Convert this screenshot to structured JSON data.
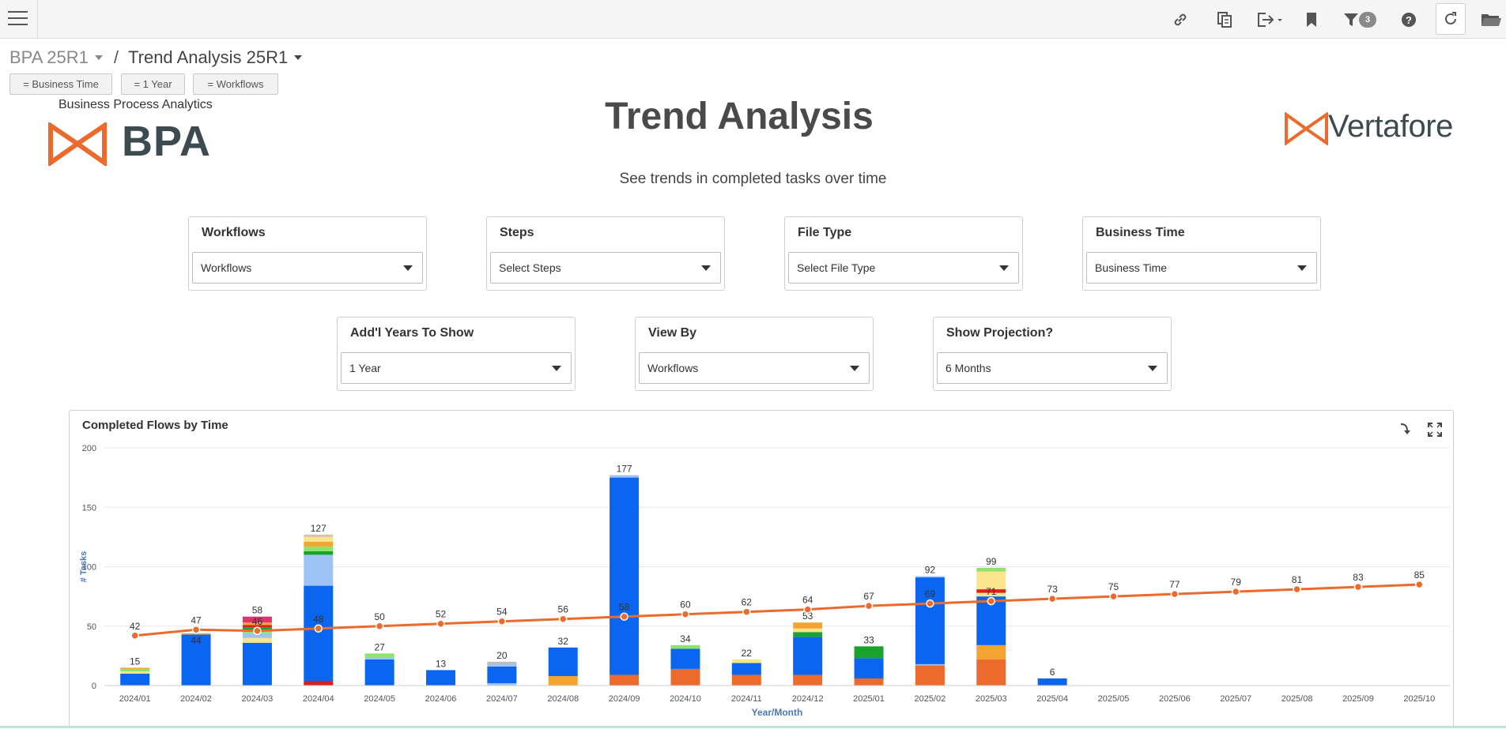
{
  "topbar": {
    "icons": [
      "menu-icon",
      "link-icon",
      "copy-icon",
      "export-icon",
      "bookmark-icon",
      "filter-icon",
      "help-icon",
      "refresh-icon",
      "folder-icon"
    ],
    "filter_count": "3"
  },
  "breadcrumb": {
    "parent": "BPA 25R1",
    "separator": "/",
    "current": "Trend Analysis 25R1"
  },
  "chips": [
    "= Business Time",
    "= 1 Year",
    "= Workflows"
  ],
  "header": {
    "bpa_caption": "Business Process Analytics",
    "bpa_logo_text": "BPA",
    "vertafore_logo_text": "Vertafore",
    "title": "Trend Analysis",
    "subtitle": "See trends in completed tasks over time"
  },
  "filters": {
    "workflows": {
      "label": "Workflows",
      "value": "Workflows"
    },
    "steps": {
      "label": "Steps",
      "value": "Select Steps"
    },
    "file_type": {
      "label": "File Type",
      "value": "Select File Type"
    },
    "business_time": {
      "label": "Business Time",
      "value": "Business Time"
    },
    "years": {
      "label": "Add'l Years To Show",
      "value": "1 Year"
    },
    "view_by": {
      "label": "View By",
      "value": "Workflows"
    },
    "projection": {
      "label": "Show Projection?",
      "value": "6 Months"
    }
  },
  "colors": {
    "accent_orange": "#ec6a2c",
    "bar_blue": "#0a66f0",
    "light_blue": "#9ec3f5",
    "yellow": "#fbe58c",
    "amber": "#f2a530",
    "green": "#1aa32c",
    "light_green": "#8ee36a",
    "red": "#d9201f",
    "pink": "#e0336b"
  },
  "chart_data": {
    "type": "bar",
    "title": "Completed Flows by Time",
    "xlabel": "Year/Month",
    "ylabel": "# Tasks",
    "ylim": [
      0,
      200
    ],
    "yticks": [
      0,
      50,
      100,
      150,
      200
    ],
    "grid": true,
    "categories": [
      "2024/01",
      "2024/02",
      "2024/03",
      "2024/04",
      "2024/05",
      "2024/06",
      "2024/07",
      "2024/08",
      "2024/09",
      "2024/10",
      "2024/11",
      "2024/12",
      "2025/01",
      "2025/02",
      "2025/03",
      "2025/04",
      "2025/05",
      "2025/06",
      "2025/07",
      "2025/08",
      "2025/09",
      "2025/10"
    ],
    "bar_totals": [
      15,
      44,
      58,
      127,
      27,
      13,
      20,
      32,
      177,
      34,
      22,
      53,
      33,
      92,
      99,
      6,
      null,
      null,
      null,
      null,
      null,
      null
    ],
    "bar_label_values": [
      15,
      null,
      58,
      127,
      27,
      13,
      20,
      32,
      177,
      34,
      22,
      53,
      33,
      92,
      99,
      6,
      null,
      null,
      null,
      null,
      null,
      null
    ],
    "stacks": [
      [
        {
          "c": "#0a66f0",
          "v": 10
        },
        {
          "c": "#fbe58c",
          "v": 2
        },
        {
          "c": "#8ee36a",
          "v": 2
        },
        {
          "c": "#f2a530",
          "v": 1
        }
      ],
      [
        {
          "c": "#0a66f0",
          "v": 43
        },
        {
          "c": "#f2a530",
          "v": 1
        }
      ],
      [
        {
          "c": "#0a66f0",
          "v": 36
        },
        {
          "c": "#fbe58c",
          "v": 4
        },
        {
          "c": "#9ec3f5",
          "v": 4
        },
        {
          "c": "#8ee36a",
          "v": 3
        },
        {
          "c": "#1aa32c",
          "v": 2
        },
        {
          "c": "#d9201f",
          "v": 2
        },
        {
          "c": "#f2a530",
          "v": 2
        },
        {
          "c": "#e0336b",
          "v": 5
        }
      ],
      [
        {
          "c": "#d9201f",
          "v": 4
        },
        {
          "c": "#0a66f0",
          "v": 80
        },
        {
          "c": "#9ec3f5",
          "v": 26
        },
        {
          "c": "#1aa32c",
          "v": 3
        },
        {
          "c": "#8ee36a",
          "v": 4
        },
        {
          "c": "#f2a530",
          "v": 4
        },
        {
          "c": "#fbe58c",
          "v": 4
        },
        {
          "c": "#d9c4a8",
          "v": 2
        }
      ],
      [
        {
          "c": "#0a66f0",
          "v": 22
        },
        {
          "c": "#9ec3f5",
          "v": 2
        },
        {
          "c": "#8ee36a",
          "v": 3
        }
      ],
      [
        {
          "c": "#0a66f0",
          "v": 13
        }
      ],
      [
        {
          "c": "#9ec3f5",
          "v": 2
        },
        {
          "c": "#0a66f0",
          "v": 14
        },
        {
          "c": "#9ec3f5",
          "v": 2
        },
        {
          "c": "#bbbbbb",
          "v": 2
        }
      ],
      [
        {
          "c": "#f2a530",
          "v": 8
        },
        {
          "c": "#0a66f0",
          "v": 24
        }
      ],
      [
        {
          "c": "#ec6a2c",
          "v": 9
        },
        {
          "c": "#0a66f0",
          "v": 166
        },
        {
          "c": "#9ec3f5",
          "v": 2
        }
      ],
      [
        {
          "c": "#ec6a2c",
          "v": 14
        },
        {
          "c": "#0a66f0",
          "v": 17
        },
        {
          "c": "#8ee36a",
          "v": 3
        }
      ],
      [
        {
          "c": "#ec6a2c",
          "v": 9
        },
        {
          "c": "#0a66f0",
          "v": 10
        },
        {
          "c": "#fbe58c",
          "v": 3
        }
      ],
      [
        {
          "c": "#ec6a2c",
          "v": 9
        },
        {
          "c": "#0a66f0",
          "v": 32
        },
        {
          "c": "#1aa32c",
          "v": 4
        },
        {
          "c": "#fbe58c",
          "v": 3
        },
        {
          "c": "#f2a530",
          "v": 5
        }
      ],
      [
        {
          "c": "#ec6a2c",
          "v": 6
        },
        {
          "c": "#0a66f0",
          "v": 17
        },
        {
          "c": "#1aa32c",
          "v": 10
        }
      ],
      [
        {
          "c": "#ec6a2c",
          "v": 17
        },
        {
          "c": "#9ec3f5",
          "v": 1
        },
        {
          "c": "#0a66f0",
          "v": 73
        },
        {
          "c": "#9ec3f5",
          "v": 1
        }
      ],
      [
        {
          "c": "#ec6a2c",
          "v": 22
        },
        {
          "c": "#f2a530",
          "v": 12
        },
        {
          "c": "#0a66f0",
          "v": 41
        },
        {
          "c": "#fbe58c",
          "v": 3
        },
        {
          "c": "#d9201f",
          "v": 3
        },
        {
          "c": "#fbe58c",
          "v": 15
        },
        {
          "c": "#8ee36a",
          "v": 3
        }
      ],
      [
        {
          "c": "#0a66f0",
          "v": 6
        }
      ],
      [],
      [],
      [],
      [],
      [],
      []
    ],
    "trend_line": {
      "color": "#ec6a2c",
      "values": [
        42,
        47,
        46,
        48,
        50,
        52,
        54,
        56,
        58,
        60,
        62,
        64,
        67,
        69,
        71,
        73,
        75,
        77,
        79,
        81,
        83,
        85
      ],
      "labels": [
        "42",
        "47",
        "46",
        "48",
        "50",
        "52",
        "54",
        "56",
        "58",
        "60",
        "62",
        "64",
        "67",
        "69",
        "71",
        "73",
        "75",
        "77",
        "79",
        "81",
        "83",
        "85"
      ]
    },
    "legend": "none"
  }
}
